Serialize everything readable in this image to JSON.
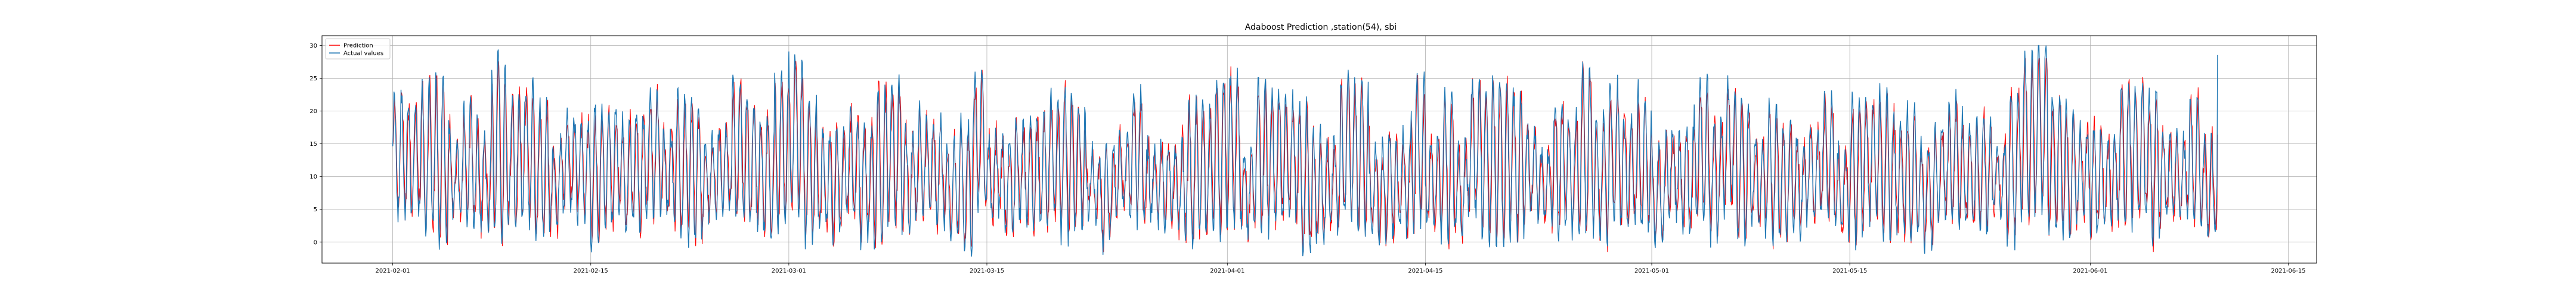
{
  "chart_data": {
    "type": "line",
    "title": "Adaboost Prediction ,station(54), sbi",
    "xlabel": "",
    "ylabel": "",
    "x_range": [
      "2021-02-01",
      "2021-06-10"
    ],
    "xlim": [
      "2021-01-27",
      "2021-06-17"
    ],
    "ylim": [
      -3.2,
      31.5
    ],
    "x_ticks": [
      "2021-02-01",
      "2021-02-15",
      "2021-03-01",
      "2021-03-15",
      "2021-04-01",
      "2021-04-15",
      "2021-05-01",
      "2021-05-15",
      "2021-06-01",
      "2021-06-15"
    ],
    "y_ticks": [
      0,
      5,
      10,
      15,
      20,
      25,
      30
    ],
    "grid": true,
    "legend_placement": "top-left",
    "series": [
      {
        "name": "Prediction",
        "color": "#ff0000",
        "approx_range": [
          -1.5,
          28
        ],
        "note_values": "hourly series oscillating roughly between 0 and 25 with daily cycles"
      },
      {
        "name": "Actual values",
        "color": "#1f77b4",
        "approx_range": [
          -2,
          30
        ],
        "note_values": "hourly series oscillating roughly between 0 and 28 with daily cycles"
      }
    ]
  }
}
